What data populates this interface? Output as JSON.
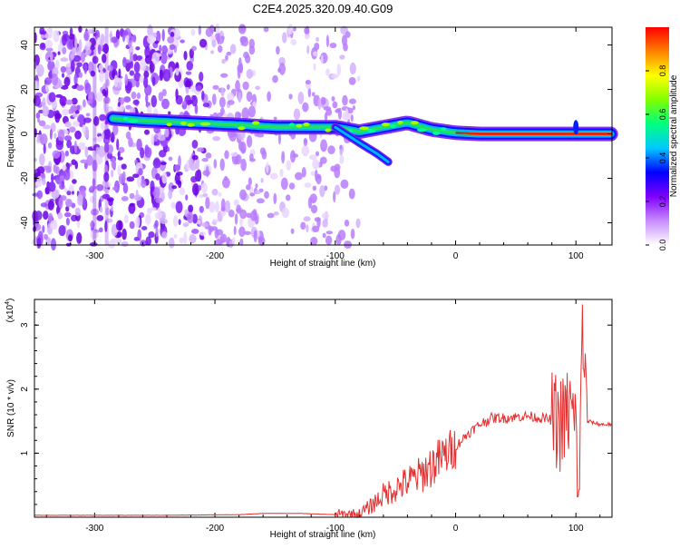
{
  "title": "C2E4.2025.320.09.40.G09",
  "chart_data": [
    {
      "type": "heatmap",
      "xlabel": "Height of straight line (km)",
      "ylabel": "Frequency (Hz)",
      "xlim": [
        -350,
        130
      ],
      "ylim": [
        -50,
        48
      ],
      "xticks": [
        -300,
        -200,
        -100,
        0,
        100
      ],
      "yticks": [
        -40,
        -20,
        0,
        20,
        40
      ],
      "colorbar": {
        "label": "Normalized spectral amplitude",
        "range": [
          0,
          1
        ],
        "ticks": [
          "0.0",
          "0.2",
          "0.4",
          "0.6",
          "0.8"
        ],
        "colors": [
          "#ffffff",
          "#c88cff",
          "#8000ff",
          "#0000ff",
          "#00c8ff",
          "#00ff80",
          "#80ff00",
          "#ffff00",
          "#ff8000",
          "#ff0000"
        ]
      },
      "ridge": {
        "x": [
          -285,
          -260,
          -220,
          -180,
          -150,
          -120,
          -100,
          -80,
          -60,
          -40,
          -20,
          0,
          20,
          60,
          100,
          130
        ],
        "y": [
          7,
          6,
          5,
          4,
          3,
          3,
          3,
          1,
          3,
          5,
          2,
          0.5,
          0,
          0,
          0,
          0
        ],
        "branch_x": [
          -100,
          -80,
          -65,
          -55
        ],
        "branch_y": [
          3,
          -4,
          -9,
          -13
        ]
      },
      "noise_extent_x": [
        -350,
        -90
      ]
    },
    {
      "type": "line",
      "xlabel": "Height of straight line (km)",
      "ylabel": "SNR (10 * v/v)",
      "yscale_label": "(x10",
      "yscale_exp": "4",
      "yscale_close": ")",
      "xlim": [
        -350,
        130
      ],
      "ylim": [
        0,
        3.4
      ],
      "xticks": [
        -300,
        -200,
        -100,
        0,
        100
      ],
      "yticks": [
        1,
        2,
        3
      ],
      "line_color": "#e53030",
      "series": [
        {
          "x": [
            -350,
            -250,
            -180,
            -160,
            -130,
            -100,
            -80,
            -70,
            -60,
            -50,
            -40,
            -30,
            -20,
            -10,
            0,
            10,
            20,
            30,
            40,
            60,
            80,
            90,
            95,
            100,
            103,
            105,
            108,
            110,
            120,
            130
          ],
          "y": [
            0.03,
            0.03,
            0.04,
            0.06,
            0.06,
            0.04,
            0.05,
            0.18,
            0.35,
            0.45,
            0.55,
            0.65,
            0.8,
            0.95,
            1.1,
            1.3,
            1.45,
            1.55,
            1.55,
            1.58,
            1.52,
            1.45,
            1.7,
            1.35,
            0.2,
            3.3,
            1.9,
            1.5,
            1.45,
            1.45
          ]
        }
      ]
    }
  ]
}
